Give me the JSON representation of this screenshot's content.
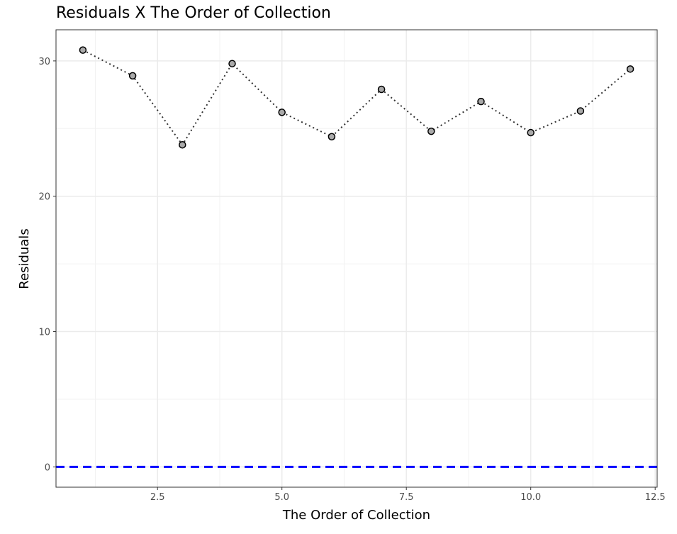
{
  "chart_data": {
    "type": "line",
    "title": "Residuals X The Order of Collection",
    "xlabel": "The Order of Collection",
    "ylabel": "Residuals",
    "x": [
      1,
      2,
      3,
      4,
      5,
      6,
      7,
      8,
      9,
      10,
      11,
      12
    ],
    "y": [
      30.8,
      28.9,
      23.8,
      29.8,
      26.2,
      24.4,
      27.9,
      24.8,
      27.0,
      24.7,
      26.3,
      29.4
    ],
    "xlim": [
      0.46,
      12.54
    ],
    "ylim": [
      -1.5,
      32.3
    ],
    "xticks": [
      2.5,
      5.0,
      7.5,
      10.0,
      12.5
    ],
    "xtick_labels": [
      "2.5",
      "5.0",
      "7.5",
      "10.0",
      "12.5"
    ],
    "yticks": [
      0,
      10,
      20,
      30
    ],
    "ytick_labels": [
      "0",
      "10",
      "20",
      "30"
    ],
    "reference_line": {
      "y": 0,
      "style": "dashed",
      "color": "#0000ff"
    },
    "line_style": "dotted",
    "line_color": "#333333",
    "point_fill": "#aaaaaa",
    "grid": true
  }
}
